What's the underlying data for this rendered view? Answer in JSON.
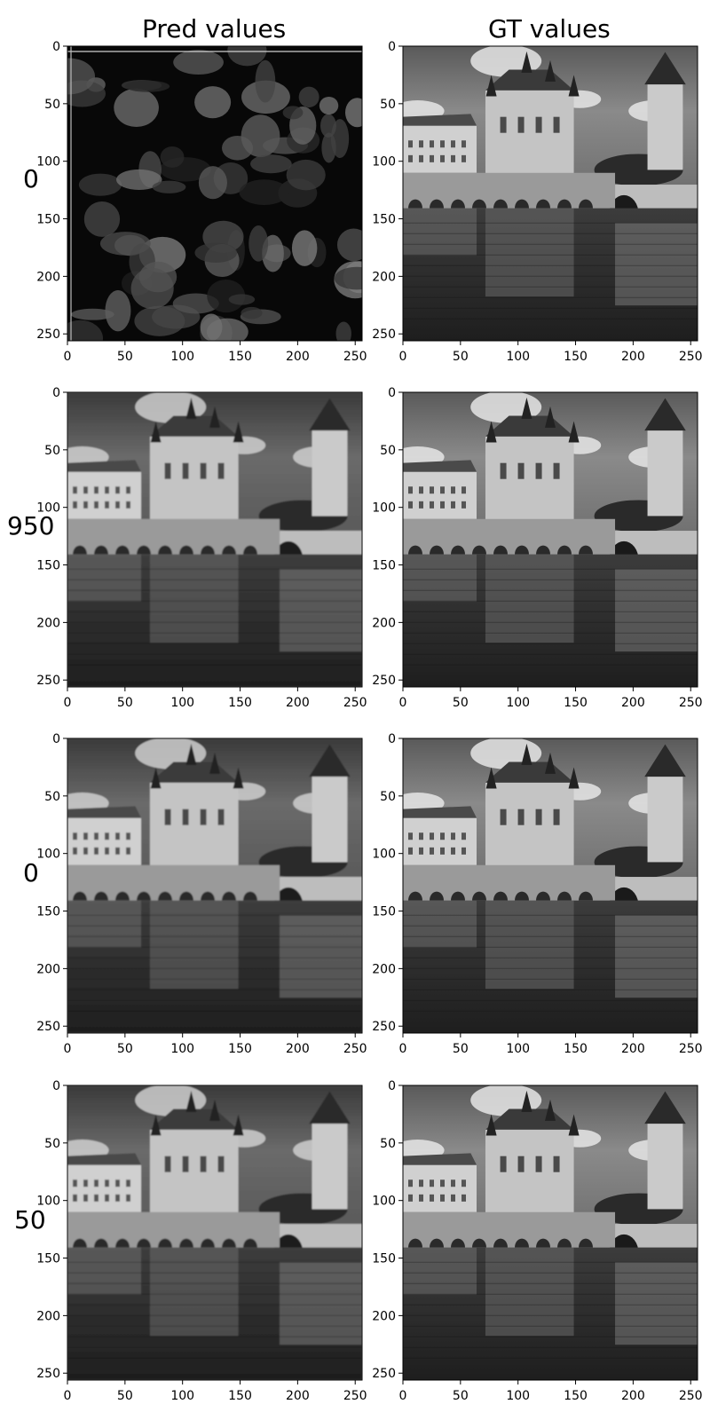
{
  "figure": {
    "column_titles": [
      "Pred values",
      "GT values"
    ],
    "row_labels": [
      "0",
      "950",
      "0",
      "50"
    ]
  },
  "chart_data": {
    "type": "image-grid",
    "x_ticks": [
      0,
      50,
      100,
      150,
      200,
      250
    ],
    "y_ticks": [
      0,
      50,
      100,
      150,
      200,
      250
    ],
    "xlim": [
      0,
      256
    ],
    "ylim": [
      256,
      0
    ],
    "panels": [
      {
        "row": 0,
        "col": 0,
        "kind": "noise"
      },
      {
        "row": 0,
        "col": 1,
        "kind": "castle-sharp"
      },
      {
        "row": 1,
        "col": 0,
        "kind": "castle-soft"
      },
      {
        "row": 1,
        "col": 1,
        "kind": "castle-sharp"
      },
      {
        "row": 2,
        "col": 0,
        "kind": "castle-soft"
      },
      {
        "row": 2,
        "col": 1,
        "kind": "castle-sharp"
      },
      {
        "row": 3,
        "col": 0,
        "kind": "castle-soft"
      },
      {
        "row": 3,
        "col": 1,
        "kind": "castle-sharp"
      }
    ]
  }
}
